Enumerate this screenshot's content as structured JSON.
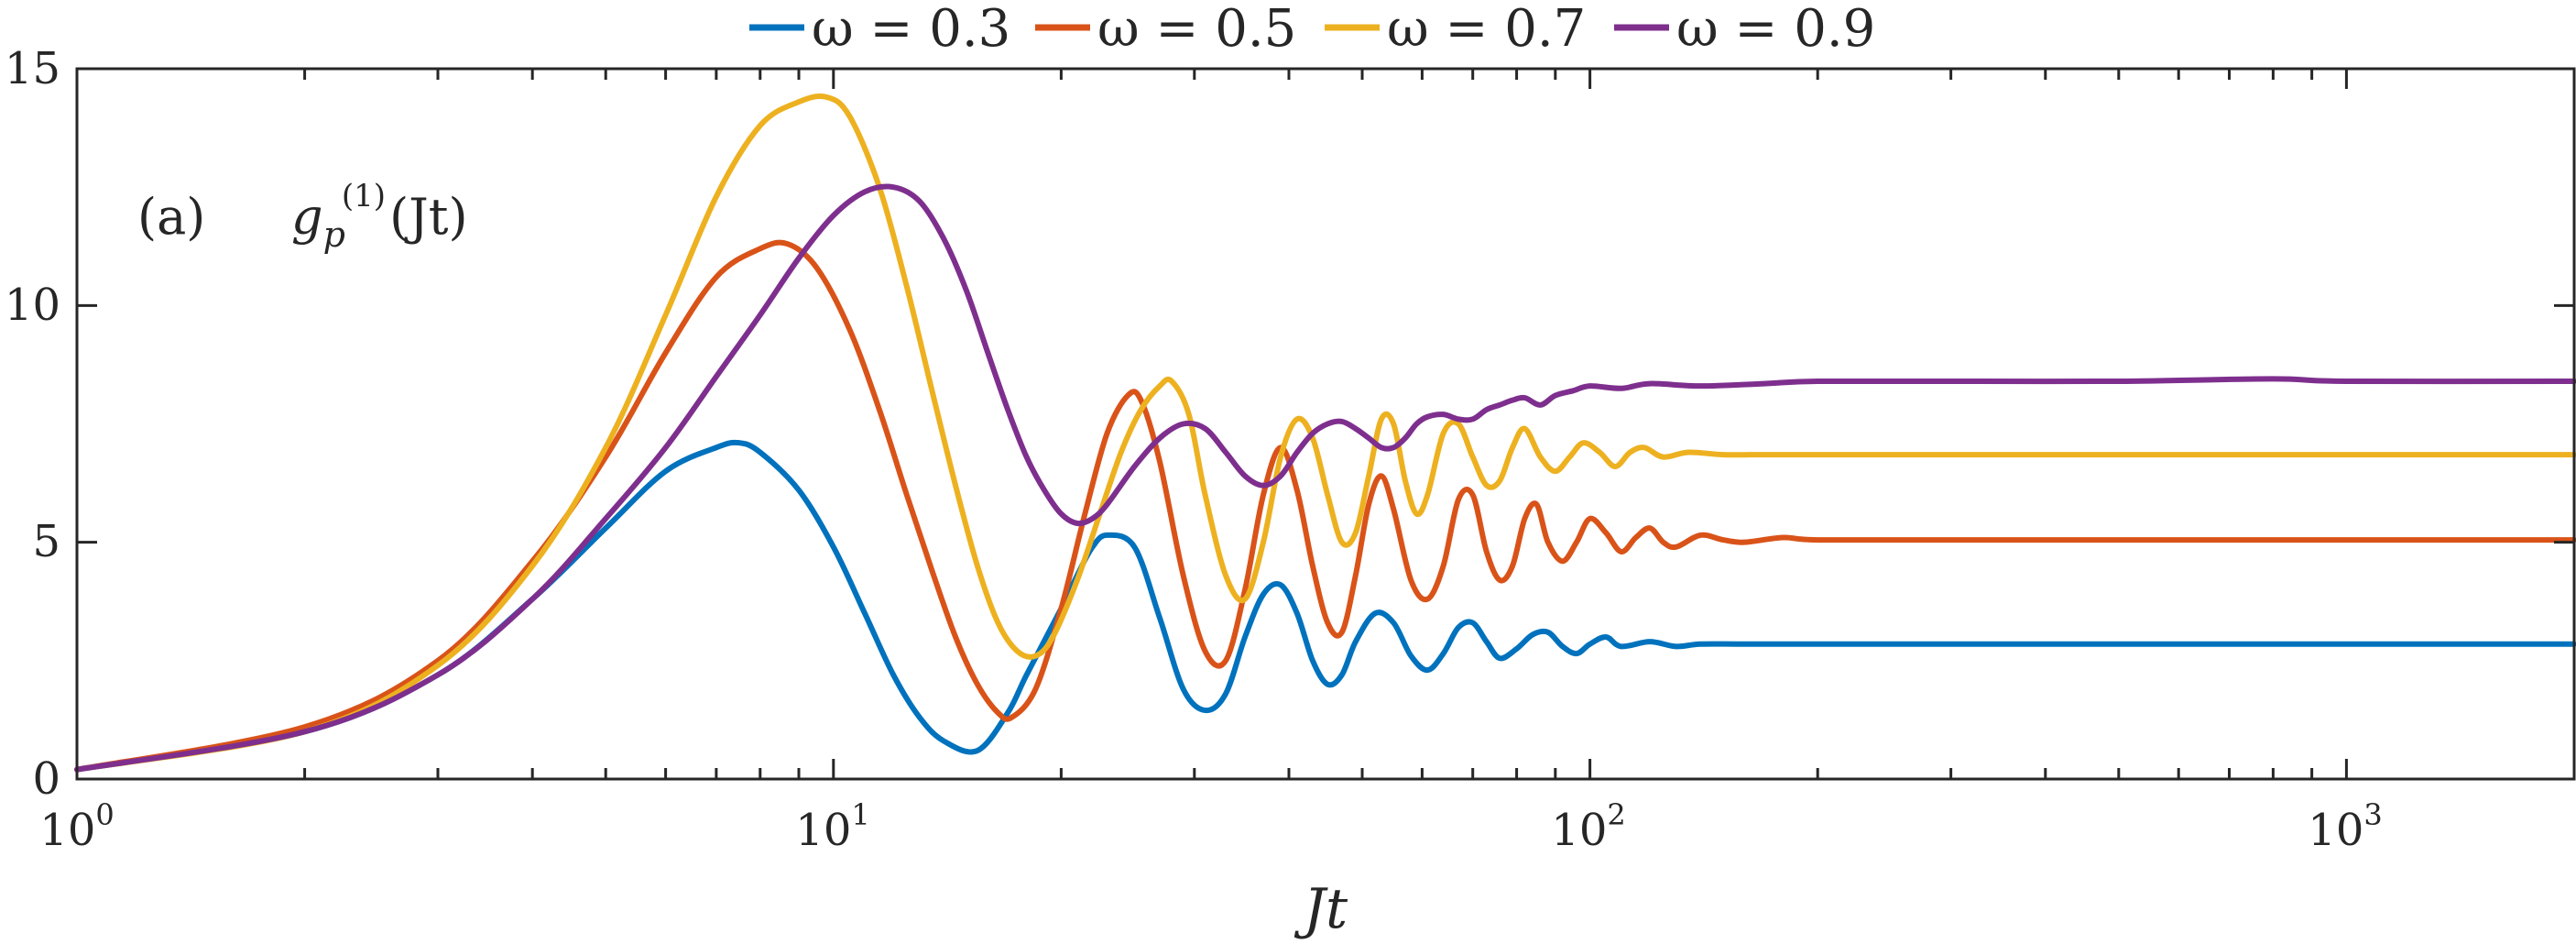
{
  "chart_data": {
    "type": "line",
    "panel_label": "(a)",
    "function_label": {
      "g": "g",
      "sub": "p",
      "sup": "(1)",
      "arg": "(Jt)"
    },
    "xlabel": "Jt",
    "ylabel": "",
    "xscale": "log",
    "xlim": [
      1,
      2000
    ],
    "ylim": [
      0,
      15
    ],
    "yticks": [
      "0",
      "5",
      "10",
      "15"
    ],
    "xticks": [
      {
        "base": "10",
        "exp": "0"
      },
      {
        "base": "10",
        "exp": "1"
      },
      {
        "base": "10",
        "exp": "2"
      },
      {
        "base": "10",
        "exp": "3"
      }
    ],
    "legend_position": "top-outside",
    "grid": false,
    "series": [
      {
        "name": "ω = 0.3",
        "color": "#0072BD",
        "x": [
          1,
          2,
          3,
          4,
          5,
          6,
          7,
          7.5,
          8,
          9,
          10,
          11,
          12,
          13,
          14,
          15.5,
          17,
          18,
          20,
          21,
          22,
          23,
          25,
          27,
          29,
          31,
          33,
          35,
          37,
          39,
          41,
          43,
          45,
          47,
          49,
          52,
          55,
          58,
          61,
          64,
          67,
          70,
          73,
          76,
          80,
          84,
          88,
          92,
          96,
          100,
          105,
          110,
          120,
          130,
          140,
          160,
          200,
          300,
          500,
          1000,
          2000
        ],
        "y": [
          0.2,
          1.0,
          2.2,
          3.8,
          5.3,
          6.5,
          7.0,
          7.1,
          6.9,
          6.1,
          4.9,
          3.5,
          2.2,
          1.3,
          0.8,
          0.6,
          1.4,
          2.2,
          3.6,
          4.3,
          4.9,
          5.15,
          4.9,
          3.4,
          1.9,
          1.45,
          1.8,
          3.0,
          3.9,
          4.1,
          3.5,
          2.5,
          2.0,
          2.2,
          2.9,
          3.5,
          3.3,
          2.6,
          2.3,
          2.65,
          3.2,
          3.3,
          2.9,
          2.55,
          2.75,
          3.05,
          3.1,
          2.8,
          2.65,
          2.85,
          3.0,
          2.8,
          2.9,
          2.8,
          2.85,
          2.85,
          2.85,
          2.85,
          2.85,
          2.85,
          2.85
        ]
      },
      {
        "name": "ω = 0.5",
        "color": "#D95319",
        "x": [
          1,
          2,
          3,
          4,
          5,
          6,
          7,
          8,
          8.7,
          9.5,
          10.5,
          11.5,
          12.5,
          13.5,
          14.5,
          15.5,
          16.5,
          17.2,
          18.5,
          20,
          21.5,
          23,
          24.5,
          25.5,
          27,
          29,
          31,
          33,
          35,
          37,
          39,
          41,
          43,
          45,
          47,
          49,
          51,
          53,
          55,
          58,
          61,
          64,
          67,
          70,
          73,
          76,
          79,
          82,
          85,
          88,
          92,
          96,
          100,
          105,
          110,
          115,
          120,
          125,
          130,
          140,
          150,
          160,
          180,
          200,
          300,
          500,
          1000,
          2000
        ],
        "y": [
          0.2,
          1.1,
          2.5,
          4.6,
          6.8,
          9.0,
          10.6,
          11.2,
          11.3,
          10.8,
          9.5,
          7.8,
          6.0,
          4.4,
          3.0,
          2.0,
          1.4,
          1.3,
          1.9,
          3.6,
          5.6,
          7.3,
          8.1,
          8.0,
          6.7,
          4.3,
          2.7,
          2.5,
          4.0,
          6.0,
          7.0,
          6.1,
          4.5,
          3.3,
          3.1,
          4.3,
          5.8,
          6.4,
          5.7,
          4.2,
          3.8,
          4.5,
          5.9,
          6.0,
          4.8,
          4.2,
          4.5,
          5.5,
          5.8,
          5.0,
          4.6,
          5.0,
          5.5,
          5.2,
          4.8,
          5.1,
          5.3,
          5.0,
          4.9,
          5.15,
          5.05,
          5.0,
          5.1,
          5.05,
          5.05,
          5.05,
          5.05,
          5.05
        ]
      },
      {
        "name": "ω = 0.7",
        "color": "#EDB120",
        "x": [
          1,
          2,
          3,
          4,
          5,
          6,
          7,
          8,
          9,
          9.8,
          10.5,
          11.5,
          12.5,
          13.5,
          14.5,
          15.5,
          16.5,
          17.5,
          18.5,
          19.5,
          21,
          22.5,
          24,
          25.5,
          27,
          28,
          29.5,
          31,
          33,
          35,
          37,
          39,
          41,
          43,
          45,
          47,
          49,
          51,
          53,
          55,
          57,
          59,
          61,
          64,
          67,
          70,
          73,
          76,
          79,
          82,
          86,
          90,
          94,
          98,
          103,
          108,
          113,
          118,
          125,
          135,
          150,
          170,
          200,
          300,
          500,
          1000,
          2000
        ],
        "y": [
          0.2,
          1.0,
          2.4,
          4.5,
          7.0,
          9.8,
          12.3,
          13.8,
          14.3,
          14.4,
          14.0,
          12.5,
          10.4,
          8.2,
          6.2,
          4.5,
          3.3,
          2.7,
          2.6,
          3.0,
          4.2,
          5.6,
          6.9,
          7.8,
          8.3,
          8.4,
          7.7,
          6.0,
          4.3,
          3.8,
          5.0,
          6.8,
          7.6,
          7.2,
          6.0,
          5.0,
          5.2,
          6.4,
          7.6,
          7.5,
          6.3,
          5.6,
          6.0,
          7.3,
          7.5,
          6.8,
          6.2,
          6.3,
          7.0,
          7.4,
          6.8,
          6.5,
          6.8,
          7.1,
          6.9,
          6.6,
          6.9,
          7.0,
          6.8,
          6.9,
          6.85,
          6.85,
          6.85,
          6.85,
          6.85,
          6.85,
          6.85
        ]
      },
      {
        "name": "ω = 0.9",
        "color": "#7E2F8E",
        "x": [
          1,
          2,
          3,
          4,
          5,
          6,
          7,
          8,
          9,
          10,
          11,
          12,
          13,
          14,
          15,
          16,
          17,
          18,
          19,
          20,
          21,
          22,
          23,
          25,
          27,
          29,
          31,
          33,
          35,
          37,
          39,
          41,
          43,
          45,
          47,
          49,
          51,
          53,
          55,
          57,
          59,
          61,
          64,
          67,
          70,
          73,
          76,
          79,
          82,
          86,
          90,
          95,
          100,
          110,
          120,
          140,
          170,
          200,
          300,
          500,
          800,
          1000,
          2000
        ],
        "y": [
          0.2,
          1.0,
          2.2,
          3.8,
          5.5,
          7.0,
          8.5,
          9.8,
          11.0,
          11.9,
          12.4,
          12.5,
          12.2,
          11.4,
          10.3,
          9.0,
          7.8,
          6.8,
          6.1,
          5.6,
          5.4,
          5.5,
          5.8,
          6.6,
          7.2,
          7.5,
          7.4,
          6.9,
          6.4,
          6.2,
          6.4,
          6.9,
          7.3,
          7.5,
          7.55,
          7.4,
          7.2,
          7.0,
          7.0,
          7.2,
          7.5,
          7.65,
          7.7,
          7.6,
          7.6,
          7.8,
          7.9,
          8.0,
          8.05,
          7.9,
          8.1,
          8.2,
          8.3,
          8.25,
          8.35,
          8.3,
          8.35,
          8.4,
          8.4,
          8.4,
          8.45,
          8.4,
          8.4
        ]
      }
    ]
  }
}
